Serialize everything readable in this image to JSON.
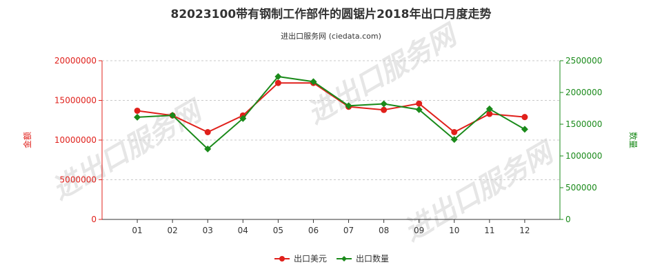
{
  "chart_data": {
    "type": "line",
    "title": "82023100带有钢制工作部件的圆锯片2018年出口月度走势",
    "subtitle": "进出口服务网 (ciedata.com)",
    "categories": [
      "01",
      "02",
      "03",
      "04",
      "05",
      "06",
      "07",
      "08",
      "09",
      "10",
      "11",
      "12"
    ],
    "y_left": {
      "label": "金额",
      "ylim": [
        0,
        20000000
      ],
      "ticks": [
        0,
        5000000,
        10000000,
        15000000,
        20000000
      ],
      "color": "#e0201b"
    },
    "y_right": {
      "label": "数量",
      "ylim": [
        0,
        2500000
      ],
      "ticks": [
        0,
        500000,
        1000000,
        1500000,
        2000000,
        2500000
      ],
      "color": "#1a8a1a"
    },
    "series": [
      {
        "name": "出口美元",
        "axis": "left",
        "color": "#e0201b",
        "marker": "circle",
        "values": [
          13700000,
          13100000,
          11000000,
          13100000,
          17200000,
          17200000,
          14200000,
          13800000,
          14600000,
          11000000,
          13300000,
          12900000
        ]
      },
      {
        "name": "出口数量",
        "axis": "right",
        "color": "#1a8a1a",
        "marker": "diamond",
        "values": [
          1610000,
          1640000,
          1110000,
          1590000,
          2250000,
          2170000,
          1790000,
          1820000,
          1730000,
          1260000,
          1740000,
          1420000
        ]
      }
    ],
    "legend": "bottom-center",
    "grid": true
  },
  "watermark": "进出口服务网"
}
